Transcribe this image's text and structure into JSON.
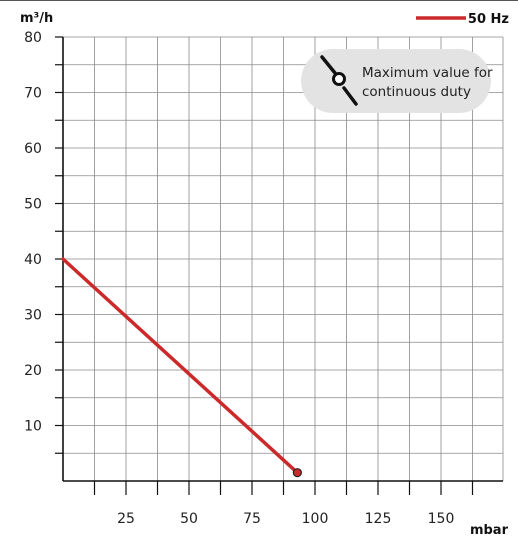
{
  "chart_data": {
    "type": "line",
    "xlabel": "mbar",
    "ylabel": "m³/h",
    "xlim": [
      0,
      175
    ],
    "ylim": [
      0,
      80
    ],
    "x_ticks": [
      25,
      50,
      75,
      100,
      125,
      150
    ],
    "y_ticks": [
      10,
      20,
      30,
      40,
      50,
      60,
      70,
      80
    ],
    "grid": true,
    "legend_position": "top-right",
    "series": [
      {
        "name": "50 Hz",
        "color": "#cc2a2a",
        "x": [
          0,
          93
        ],
        "y": [
          40,
          1.5
        ]
      }
    ],
    "end_marker": {
      "x": 93,
      "y": 1.5,
      "color": "#cc2a2a"
    },
    "annotation": {
      "lines": [
        "Maximum value for",
        "continuous duty"
      ],
      "icon": "max-continuous-duty-icon",
      "background": "#e3e3e3"
    }
  }
}
